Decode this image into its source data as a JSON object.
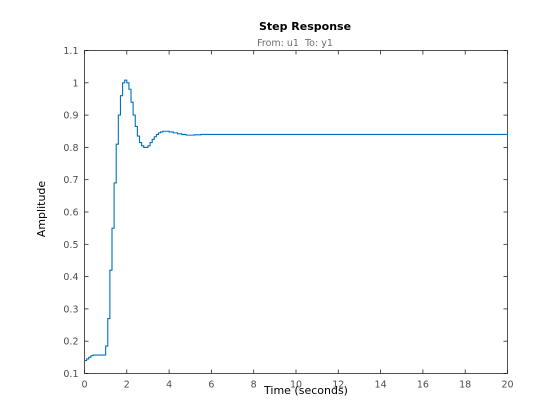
{
  "chart_data": {
    "type": "line",
    "title": "Step Response",
    "subtitle": "From: u1  To: y1",
    "xlabel": "Time (seconds)",
    "ylabel": "Amplitude",
    "xlim": [
      0,
      20
    ],
    "ylim": [
      0.1,
      1.1
    ],
    "xticks": [
      0,
      2,
      4,
      6,
      8,
      10,
      12,
      14,
      16,
      18,
      20
    ],
    "xtick_labels": [
      "0",
      "2",
      "4",
      "6",
      "8",
      "10",
      "12",
      "14",
      "16",
      "18",
      "20"
    ],
    "yticks": [
      0.1,
      0.2,
      0.3,
      0.4,
      0.5,
      0.6,
      0.7,
      0.8,
      0.9,
      1.0,
      1.1
    ],
    "ytick_labels": [
      "0.1",
      "0.2",
      "0.3",
      "0.4",
      "0.5",
      "0.6",
      "0.7",
      "0.8",
      "0.9",
      "1",
      "1.1"
    ],
    "grid": false,
    "step": true,
    "series": [
      {
        "color": "#0072bd",
        "x": [
          0,
          0.1,
          0.2,
          0.3,
          0.4,
          0.5,
          0.6,
          0.7,
          0.8,
          0.9,
          1.0,
          1.1,
          1.2,
          1.3,
          1.4,
          1.5,
          1.6,
          1.7,
          1.8,
          1.9,
          2.0,
          2.1,
          2.2,
          2.3,
          2.4,
          2.5,
          2.6,
          2.7,
          2.8,
          2.9,
          3.0,
          3.1,
          3.2,
          3.3,
          3.4,
          3.5,
          3.6,
          3.7,
          3.8,
          3.9,
          4.0,
          4.2,
          4.4,
          4.6,
          4.8,
          5.0,
          5.2,
          5.5,
          6,
          8,
          10,
          12,
          14,
          16,
          18,
          20
        ],
        "y": [
          0.14,
          0.145,
          0.15,
          0.155,
          0.157,
          0.157,
          0.157,
          0.157,
          0.157,
          0.157,
          0.185,
          0.27,
          0.42,
          0.55,
          0.69,
          0.81,
          0.9,
          0.96,
          1.0,
          1.008,
          1.0,
          0.98,
          0.94,
          0.9,
          0.865,
          0.835,
          0.815,
          0.805,
          0.8,
          0.8,
          0.805,
          0.815,
          0.825,
          0.833,
          0.84,
          0.845,
          0.848,
          0.85,
          0.85,
          0.85,
          0.848,
          0.845,
          0.842,
          0.84,
          0.838,
          0.838,
          0.839,
          0.84,
          0.84,
          0.84,
          0.84,
          0.84,
          0.84,
          0.84,
          0.84,
          0.84
        ]
      }
    ]
  }
}
